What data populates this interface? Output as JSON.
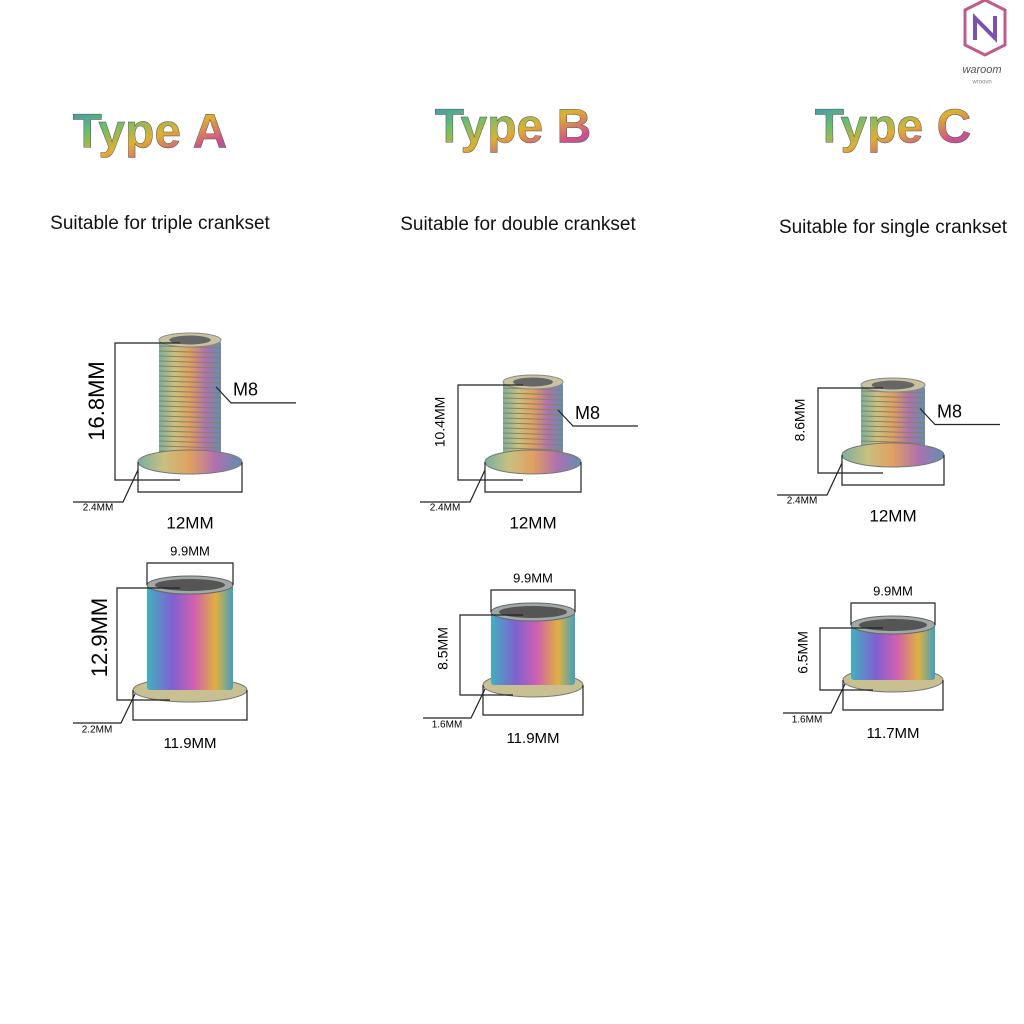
{
  "logo": {
    "name": "waroom",
    "tagline": "wroovn"
  },
  "types": [
    {
      "title": "Type A",
      "subtitle": "Suitable for triple crankset",
      "bolt": {
        "height": "16.8MM",
        "thread": "M8",
        "flange": "2.4MM",
        "width": "12MM"
      },
      "nut": {
        "top": "9.9MM",
        "height": "12.9MM",
        "flange": "2.2MM",
        "width": "11.9MM"
      }
    },
    {
      "title": "Type B",
      "subtitle": "Suitable for double crankset",
      "bolt": {
        "height": "10.4MM",
        "thread": "M8",
        "flange": "2.4MM",
        "width": "12MM"
      },
      "nut": {
        "top": "9.9MM",
        "height": "8.5MM",
        "flange": "1.6MM",
        "width": "11.9MM"
      }
    },
    {
      "title": "Type C",
      "subtitle": "Suitable for single crankset",
      "bolt": {
        "height": "8.6MM",
        "thread": "M8",
        "flange": "2.4MM",
        "width": "12MM"
      },
      "nut": {
        "top": "9.9MM",
        "height": "6.5MM",
        "flange": "1.6MM",
        "width": "11.7MM"
      }
    }
  ]
}
